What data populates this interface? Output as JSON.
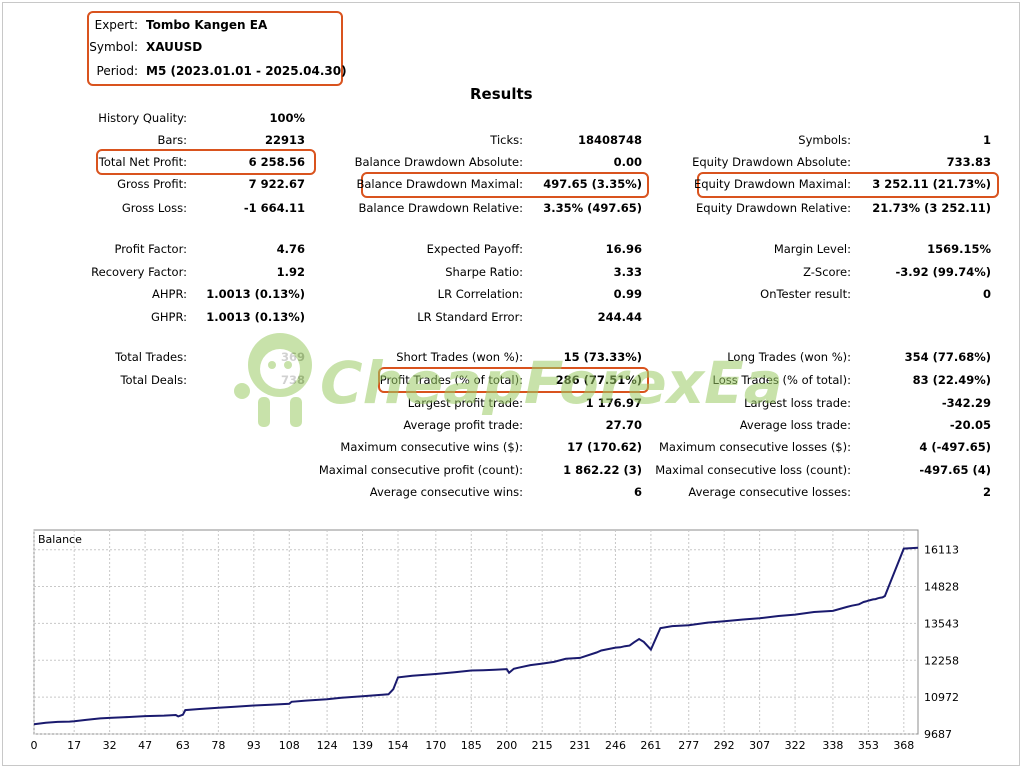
{
  "header": {
    "expert_label": "Expert:",
    "expert_value": "Tombo Kangen EA",
    "symbol_label": "Symbol:",
    "symbol_value": "XAUUSD",
    "period_label": "Period:",
    "period_value": "M5 (2023.01.01 - 2025.04.30)"
  },
  "results_title": "Results",
  "col1": [
    {
      "label": "History Quality:",
      "value": "100%"
    },
    {
      "label": "Bars:",
      "value": "22913"
    },
    {
      "label": "Total Net Profit:",
      "value": "6 258.56"
    },
    {
      "label": "Gross Profit:",
      "value": "7 922.67"
    },
    {
      "label": "Gross Loss:",
      "value": "-1 664.11"
    },
    {
      "label": "Profit Factor:",
      "value": "4.76"
    },
    {
      "label": "Recovery Factor:",
      "value": "1.92"
    },
    {
      "label": "AHPR:",
      "value": "1.0013 (0.13%)"
    },
    {
      "label": "GHPR:",
      "value": "1.0013 (0.13%)"
    },
    {
      "label": "Total Trades:",
      "value": "369"
    },
    {
      "label": "Total Deals:",
      "value": "738"
    }
  ],
  "col2": [
    {
      "label": "Ticks:",
      "value": "18408748"
    },
    {
      "label": "Balance Drawdown Absolute:",
      "value": "0.00"
    },
    {
      "label": "Balance Drawdown Maximal:",
      "value": "497.65 (3.35%)"
    },
    {
      "label": "Balance Drawdown Relative:",
      "value": "3.35% (497.65)"
    },
    {
      "label": "Expected Payoff:",
      "value": "16.96"
    },
    {
      "label": "Sharpe Ratio:",
      "value": "3.33"
    },
    {
      "label": "LR Correlation:",
      "value": "0.99"
    },
    {
      "label": "LR Standard Error:",
      "value": "244.44"
    },
    {
      "label": "Short Trades (won %):",
      "value": "15 (73.33%)"
    },
    {
      "label": "Profit Trades (% of total):",
      "value": "286 (77.51%)"
    },
    {
      "label": "Largest profit trade:",
      "value": "1 176.97"
    },
    {
      "label": "Average profit trade:",
      "value": "27.70"
    },
    {
      "label": "Maximum consecutive wins ($):",
      "value": "17 (170.62)"
    },
    {
      "label": "Maximal consecutive profit (count):",
      "value": "1 862.22 (3)"
    },
    {
      "label": "Average consecutive wins:",
      "value": "6"
    }
  ],
  "col3": [
    {
      "label": "Symbols:",
      "value": "1"
    },
    {
      "label": "Equity Drawdown Absolute:",
      "value": "733.83"
    },
    {
      "label": "Equity Drawdown Maximal:",
      "value": "3 252.11 (21.73%)"
    },
    {
      "label": "Equity Drawdown Relative:",
      "value": "21.73% (3 252.11)"
    },
    {
      "label": "Margin Level:",
      "value": "1569.15%"
    },
    {
      "label": "Z-Score:",
      "value": "-3.92 (99.74%)"
    },
    {
      "label": "OnTester result:",
      "value": "0"
    },
    {
      "label": "Long Trades (won %):",
      "value": "354 (77.68%)"
    },
    {
      "label": "Loss Trades (% of total):",
      "value": "83 (22.49%)"
    },
    {
      "label": "Largest loss trade:",
      "value": "-342.29"
    },
    {
      "label": "Average loss trade:",
      "value": "-20.05"
    },
    {
      "label": "Maximum consecutive losses ($):",
      "value": "4 (-497.65)"
    },
    {
      "label": "Maximal consecutive loss (count):",
      "value": "-497.65 (4)"
    },
    {
      "label": "Average consecutive losses:",
      "value": "2"
    }
  ],
  "watermark_text": "CheapForexEa",
  "colors": {
    "highlight": "#d9531e",
    "line": "#1a1a6e",
    "grid": "#c8c8c8",
    "watermark": "#9ccc65"
  },
  "chart_data": {
    "type": "line",
    "title": "Balance",
    "x_ticks": [
      0,
      17,
      32,
      47,
      63,
      78,
      93,
      108,
      124,
      139,
      154,
      170,
      185,
      200,
      215,
      231,
      246,
      261,
      277,
      292,
      307,
      322,
      338,
      353,
      368
    ],
    "y_ticks": [
      9687,
      10972,
      12258,
      13543,
      14828,
      16113
    ],
    "xlim": [
      0,
      374
    ],
    "ylim": [
      9687,
      16800
    ],
    "series": [
      {
        "x": [
          0,
          5,
          10,
          15,
          17,
          22,
          28,
          32,
          38,
          47,
          55,
          60,
          61,
          63,
          64,
          70,
          78,
          85,
          93,
          100,
          108,
          109,
          115,
          124,
          130,
          139,
          148,
          150,
          152,
          154,
          160,
          170,
          178,
          185,
          190,
          195,
          200,
          201,
          203,
          205,
          210,
          215,
          220,
          225,
          231,
          238,
          240,
          246,
          248,
          250,
          252,
          254,
          256,
          258,
          261,
          265,
          270,
          277,
          285,
          292,
          300,
          307,
          315,
          322,
          330,
          338,
          344,
          346,
          349,
          350,
          351,
          352,
          353,
          355,
          356,
          357,
          358,
          359,
          360,
          368,
          374
        ],
        "y": [
          10030,
          10080,
          10110,
          10120,
          10130,
          10180,
          10230,
          10250,
          10270,
          10310,
          10330,
          10350,
          10300,
          10360,
          10520,
          10560,
          10600,
          10640,
          10680,
          10710,
          10740,
          10810,
          10850,
          10900,
          10950,
          11000,
          11060,
          11070,
          11250,
          11660,
          11720,
          11780,
          11840,
          11900,
          11910,
          11930,
          11950,
          11820,
          11960,
          12000,
          12090,
          12140,
          12200,
          12310,
          12340,
          12530,
          12600,
          12700,
          12710,
          12750,
          12770,
          12890,
          13000,
          12900,
          12630,
          13380,
          13450,
          13480,
          13570,
          13620,
          13680,
          13720,
          13800,
          13850,
          13940,
          13980,
          14120,
          14160,
          14210,
          14250,
          14290,
          14310,
          14340,
          14380,
          14390,
          14420,
          14440,
          14450,
          14500,
          16150,
          16180
        ]
      }
    ]
  }
}
